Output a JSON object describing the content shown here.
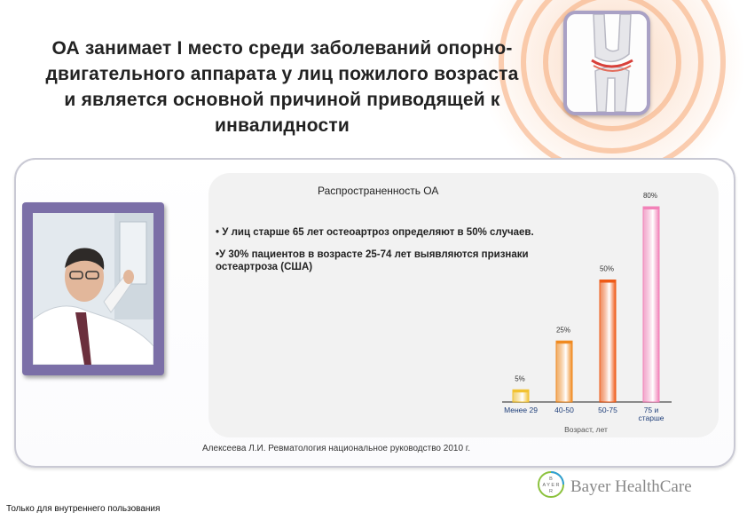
{
  "slide": {
    "title": "ОА занимает I место среди заболеваний опорно-двигательного аппарата у лиц пожилого возраста и является основной причиной приводящей к инвалидности",
    "title_lines": [
      "ОА занимает I место среди заболеваний опорно-",
      "двигательного аппарата у лиц пожилого возраста",
      "и является основной причиной приводящей к",
      "инвалидности"
    ],
    "bullets": [
      "• У лиц старше 65 лет остеоартроз определяют в 50% случаев.",
      "•У 30% пациентов в возрасте 25-74 лет  выявляются признаки остеартроза (США)"
    ],
    "source": "Алексеева Л.И. Ревматология национальное руководство 2010 г.",
    "footer_note": "Только для внутреннего пользования",
    "logo_text": "Bayer HealthCare",
    "logo_icon": "bayer-cross-icon",
    "knee_icon": "knee-joint-icon"
  },
  "chart_data": {
    "type": "bar",
    "title": "Распространенность ОА",
    "categories": [
      "Менее 29",
      "40-50",
      "50-75",
      "75 и старше"
    ],
    "category_lines": [
      [
        "Менее 29"
      ],
      [
        "40-50"
      ],
      [
        "50-75"
      ],
      [
        "75 и",
        "старше"
      ]
    ],
    "values": [
      5,
      25,
      50,
      80
    ],
    "value_labels": [
      "5%",
      "25%",
      "50%",
      "80%"
    ],
    "xlabel": "Возраст, лет",
    "ylabel": "",
    "ylim": [
      0,
      80
    ],
    "grid": false,
    "bar_colors": [
      "#f2c230",
      "#f08a20",
      "#ee5a17",
      "#f282b8"
    ]
  },
  "colors": {
    "accent_orange": "#f08a20",
    "frame_purple": "#7b6fa7",
    "panel_border": "#c9c9d4"
  }
}
